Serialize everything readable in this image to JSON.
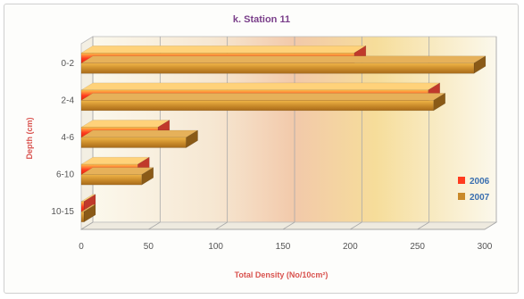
{
  "chart_data": {
    "type": "bar",
    "orientation": "horizontal",
    "title": "k. Station 11",
    "xlabel": "Total Density (No/10cm²)",
    "ylabel": "Depth (cm)",
    "categories": [
      "0-2",
      "2-4",
      "4-6",
      "6-10",
      "10-15"
    ],
    "series": [
      {
        "name": "2006",
        "values": [
          203,
          258,
          57,
          42,
          2
        ],
        "color": "#ff3b1f"
      },
      {
        "name": "2007",
        "values": [
          292,
          262,
          78,
          45,
          2
        ],
        "color": "#c98a2a"
      }
    ],
    "xlim": [
      0,
      300
    ],
    "xticks": [
      "0",
      "50",
      "100",
      "150",
      "200",
      "250",
      "300"
    ],
    "grid": true,
    "legend": "right"
  }
}
